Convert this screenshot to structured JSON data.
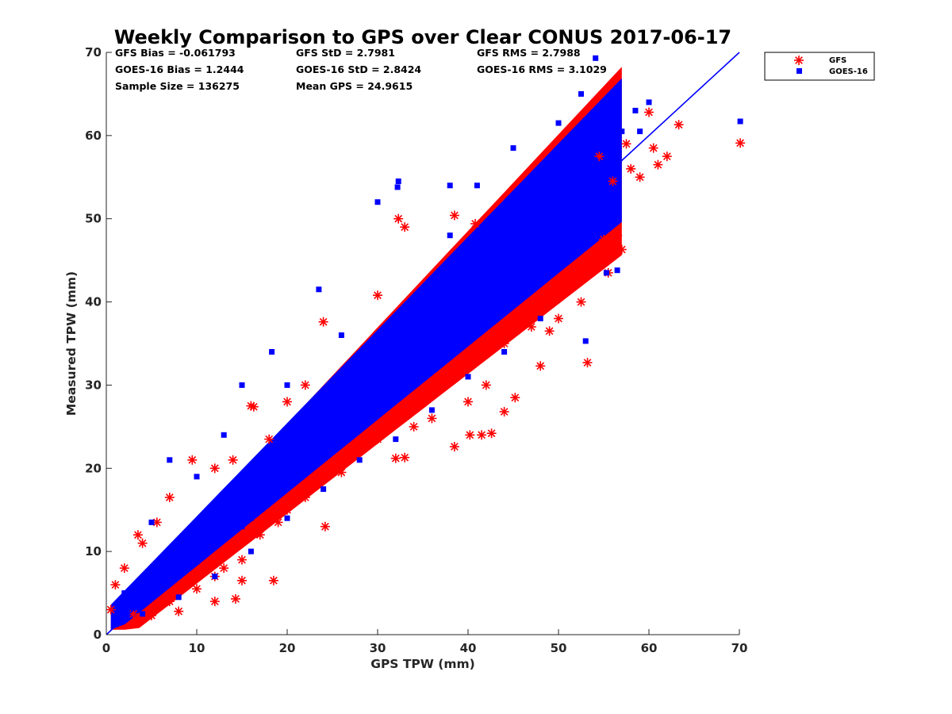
{
  "chart_data": {
    "type": "scatter",
    "title": "Weekly Comparison to GPS over Clear CONUS 2017-06-17",
    "xlabel": "GPS TPW (mm)",
    "ylabel": "Measured TPW (mm)",
    "xlim": [
      0,
      70
    ],
    "ylim": [
      0,
      70
    ],
    "xticks": [
      "0",
      "10",
      "20",
      "30",
      "40",
      "50",
      "60",
      "70"
    ],
    "yticks": [
      "0",
      "10",
      "20",
      "30",
      "40",
      "50",
      "60",
      "70"
    ],
    "grid": false,
    "legend_position": "outside-top-right",
    "reference_line": {
      "x": [
        0,
        70
      ],
      "y": [
        0,
        70
      ],
      "color": "#0000ff"
    },
    "stats": [
      "GFS Bias = -0.061793",
      "GFS StD = 2.7981",
      "GFS RMS = 2.7988",
      "GOES-16 Bias = 1.2444",
      "GOES-16 StD = 2.8424",
      "GOES-16 RMS = 3.1029",
      "Sample Size = 136275",
      "Mean GPS = 24.9615"
    ],
    "series": [
      {
        "name": "GFS",
        "marker": "asterisk",
        "color": "#ff0000",
        "points": [
          [
            63.3,
            61.3
          ],
          [
            70.1,
            59.1
          ],
          [
            60.0,
            62.8
          ],
          [
            57.0,
            46.3
          ],
          [
            55.5,
            43.5
          ],
          [
            53.2,
            32.7
          ],
          [
            48.0,
            32.3
          ],
          [
            45.2,
            28.5
          ],
          [
            44.0,
            26.8
          ],
          [
            42.6,
            24.2
          ],
          [
            41.5,
            24.0
          ],
          [
            40.2,
            24.0
          ],
          [
            38.5,
            22.6
          ],
          [
            33.0,
            21.3
          ],
          [
            32.0,
            21.2
          ],
          [
            24.2,
            13.0
          ],
          [
            18.5,
            6.5
          ],
          [
            15.0,
            6.5
          ],
          [
            14.3,
            4.3
          ],
          [
            12.0,
            4.0
          ],
          [
            8.0,
            2.8
          ],
          [
            5.0,
            2.3
          ],
          [
            16.0,
            27.5
          ],
          [
            16.3,
            27.4
          ],
          [
            18.0,
            23.5
          ],
          [
            5.6,
            13.5
          ],
          [
            24.0,
            37.6
          ],
          [
            30.0,
            40.8
          ],
          [
            32.3,
            50.0
          ],
          [
            38.5,
            50.4
          ],
          [
            40.8,
            49.4
          ],
          [
            33.0,
            49.0
          ],
          [
            14.0,
            21.0
          ],
          [
            9.5,
            21.0
          ],
          [
            7.0,
            16.5
          ],
          [
            4.0,
            11.0
          ],
          [
            2.0,
            8.0
          ],
          [
            1.0,
            6.0
          ],
          [
            0.5,
            3.0
          ],
          [
            54.5,
            57.5
          ],
          [
            56.0,
            54.5
          ],
          [
            58.0,
            56.0
          ],
          [
            61.0,
            56.5
          ],
          [
            62.0,
            57.5
          ],
          [
            59.0,
            55.0
          ],
          [
            47.0,
            37.0
          ],
          [
            44.0,
            35.0
          ],
          [
            42.0,
            30.0
          ],
          [
            40.0,
            28.0
          ],
          [
            36.0,
            26.0
          ],
          [
            34.0,
            25.0
          ],
          [
            30.0,
            23.5
          ],
          [
            26.0,
            19.5
          ],
          [
            22.0,
            16.5
          ],
          [
            20.0,
            15.0
          ],
          [
            17.0,
            12.0
          ],
          [
            15.0,
            9.0
          ],
          [
            12.0,
            7.0
          ],
          [
            10.0,
            5.5
          ],
          [
            55.0,
            47.5
          ],
          [
            56.5,
            48.0
          ],
          [
            54.0,
            44.0
          ],
          [
            52.5,
            40.0
          ],
          [
            50.0,
            38.0
          ],
          [
            49.0,
            36.5
          ],
          [
            28.0,
            22.5
          ],
          [
            23.0,
            18.0
          ],
          [
            19.0,
            13.5
          ],
          [
            13.0,
            8.0
          ],
          [
            7.0,
            4.0
          ],
          [
            3.0,
            2.5
          ],
          [
            22.0,
            30.0
          ],
          [
            20.0,
            28.0
          ],
          [
            12.0,
            20.0
          ],
          [
            3.5,
            12.0
          ],
          [
            60.5,
            58.5
          ],
          [
            57.5,
            59.0
          ]
        ]
      },
      {
        "name": "GOES-16",
        "marker": "square",
        "color": "#0000ff",
        "points": [
          [
            54.1,
            69.3
          ],
          [
            70.1,
            61.7
          ],
          [
            56.5,
            43.8
          ],
          [
            55.3,
            43.5
          ],
          [
            53.0,
            35.3
          ],
          [
            48.3,
            56.5
          ],
          [
            45.0,
            58.5
          ],
          [
            41.0,
            54.0
          ],
          [
            38.0,
            54.0
          ],
          [
            32.3,
            54.5
          ],
          [
            32.2,
            53.8
          ],
          [
            30.0,
            52.0
          ],
          [
            23.5,
            41.5
          ],
          [
            18.3,
            34.0
          ],
          [
            15.0,
            30.0
          ],
          [
            7.0,
            21.0
          ],
          [
            5.0,
            13.5
          ],
          [
            2.0,
            5.0
          ],
          [
            1.5,
            3.0
          ],
          [
            60.0,
            64.0
          ],
          [
            58.5,
            63.0
          ],
          [
            52.5,
            65.0
          ],
          [
            50.0,
            61.5
          ],
          [
            55.5,
            61.0
          ],
          [
            57.0,
            60.5
          ],
          [
            59.0,
            60.5
          ],
          [
            50.5,
            44.5
          ],
          [
            48.0,
            38.0
          ],
          [
            44.0,
            34.0
          ],
          [
            40.0,
            31.0
          ],
          [
            36.0,
            27.0
          ],
          [
            32.0,
            23.5
          ],
          [
            28.0,
            21.0
          ],
          [
            24.0,
            17.5
          ],
          [
            20.0,
            14.0
          ],
          [
            16.0,
            10.0
          ],
          [
            12.0,
            7.0
          ],
          [
            8.0,
            4.5
          ],
          [
            4.0,
            2.5
          ],
          [
            46.0,
            49.0
          ],
          [
            42.0,
            45.0
          ],
          [
            38.0,
            41.0
          ],
          [
            34.0,
            37.0
          ],
          [
            30.0,
            33.0
          ],
          [
            26.0,
            29.0
          ],
          [
            22.0,
            25.0
          ],
          [
            18.0,
            21.0
          ],
          [
            14.0,
            17.0
          ],
          [
            10.0,
            13.0
          ],
          [
            6.0,
            9.0
          ],
          [
            50.0,
            53.0
          ],
          [
            54.0,
            57.0
          ],
          [
            44.0,
            47.0
          ],
          [
            36.0,
            39.0
          ],
          [
            28.0,
            31.0
          ],
          [
            20.0,
            23.0
          ],
          [
            12.0,
            15.0
          ],
          [
            48.0,
            46.0
          ],
          [
            40.0,
            38.0
          ],
          [
            32.0,
            30.0
          ],
          [
            24.0,
            22.0
          ],
          [
            16.0,
            14.0
          ],
          [
            8.0,
            7.0
          ],
          [
            52.0,
            50.0
          ],
          [
            45.0,
            44.0
          ],
          [
            35.0,
            34.0
          ],
          [
            25.0,
            24.0
          ],
          [
            15.0,
            13.0
          ],
          [
            26.0,
            36.0
          ],
          [
            20.0,
            30.0
          ],
          [
            10.0,
            19.0
          ],
          [
            13.0,
            24.0
          ],
          [
            38.0,
            48.0
          ],
          [
            43.0,
            50.0
          ]
        ]
      }
    ]
  }
}
